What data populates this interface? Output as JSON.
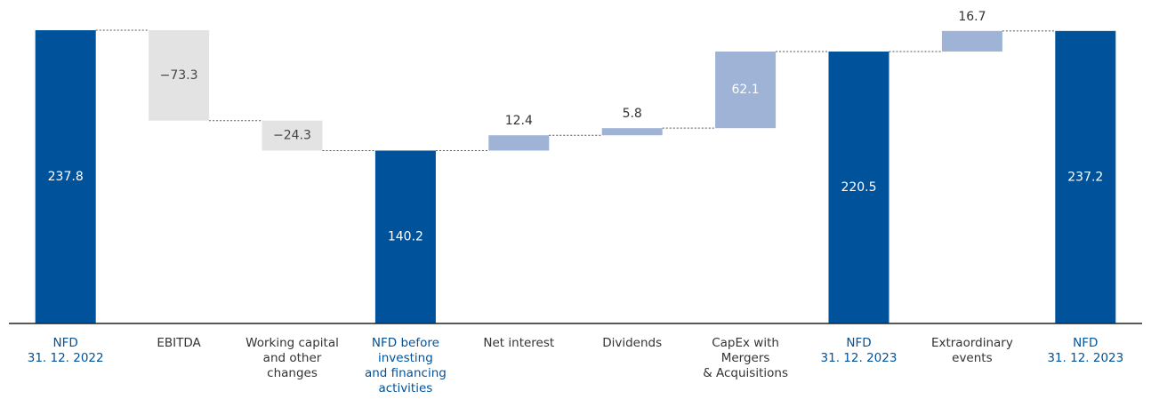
{
  "chart_data": {
    "type": "waterfall",
    "categories": [
      "NFD\n31. 12. 2022",
      "EBITDA",
      "Working capital\nand other\nchanges",
      "NFD before\ninvesting\nand financing\nactivities",
      "Net interest",
      "Dividends",
      "CapEx with\nMergers\n& Acquisitions",
      "NFD\n31. 12. 2023",
      "Extraordinary\nevents",
      "NFD\n31. 12. 2023"
    ],
    "values": [
      237.8,
      -73.3,
      -24.3,
      140.2,
      12.4,
      5.8,
      62.1,
      220.5,
      16.7,
      237.2
    ],
    "value_labels": [
      "237.8",
      "−73.3",
      "−24.3",
      "140.2",
      "12.4",
      "5.8",
      "62.1",
      "220.5",
      "16.7",
      "237.2"
    ],
    "measures": [
      "total",
      "relative",
      "relative",
      "total",
      "relative",
      "relative",
      "relative",
      "total",
      "relative",
      "total"
    ],
    "colors": {
      "total": "#00529b",
      "increase": "#9fb3d6",
      "decrease": "#e3e3e3"
    }
  }
}
